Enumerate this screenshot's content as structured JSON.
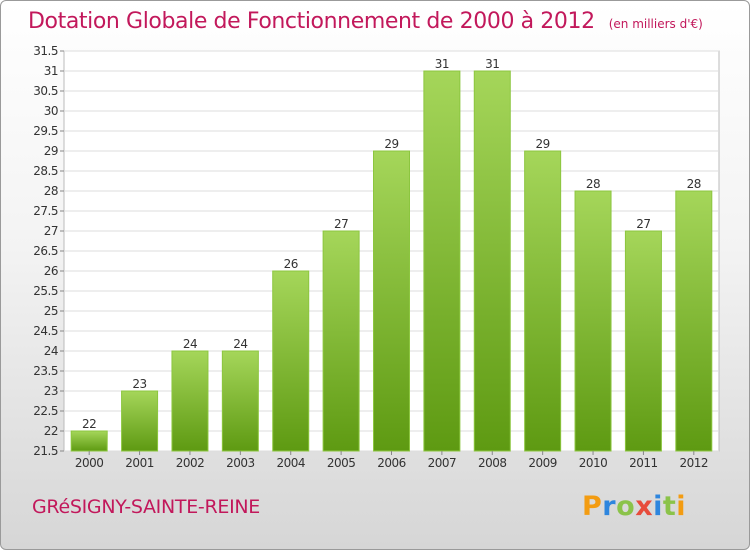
{
  "title": "Dotation Globale de Fonctionnement de 2000 à 2012",
  "unit_note": "(en milliers d'€)",
  "city": "GRéSIGNY-SAINTE-REINE",
  "logo": {
    "letters": [
      "P",
      "r",
      "o",
      "x",
      "i",
      "t",
      "i"
    ],
    "colors": [
      "#f39c12",
      "#2e86de",
      "#8bc34a",
      "#e74c3c",
      "#2e86de",
      "#8bc34a",
      "#f39c12"
    ]
  },
  "colors": {
    "title": "#c2185b",
    "bar_top": "#a5d65a",
    "bar_bottom": "#5e9a12",
    "label": "#333333"
  },
  "chart_data": {
    "type": "bar",
    "categories": [
      "2000",
      "2001",
      "2002",
      "2003",
      "2004",
      "2005",
      "2006",
      "2007",
      "2008",
      "2009",
      "2010",
      "2011",
      "2012"
    ],
    "values": [
      22,
      23,
      24,
      24,
      26,
      27,
      29,
      31,
      31,
      29,
      28,
      27,
      28
    ],
    "value_labels": [
      "22",
      "23",
      "24",
      "24",
      "26",
      "27",
      "29",
      "31",
      "31",
      "29",
      "28",
      "27",
      "28"
    ],
    "ylim": [
      21.5,
      31.5
    ],
    "yticks": [
      "21.5",
      "22",
      "22.5",
      "23",
      "23.5",
      "24",
      "24.5",
      "25",
      "25.5",
      "26",
      "26.5",
      "27",
      "27.5",
      "28",
      "28.5",
      "29",
      "29.5",
      "30",
      "30.5",
      "31",
      "31.5"
    ],
    "grid": true
  }
}
